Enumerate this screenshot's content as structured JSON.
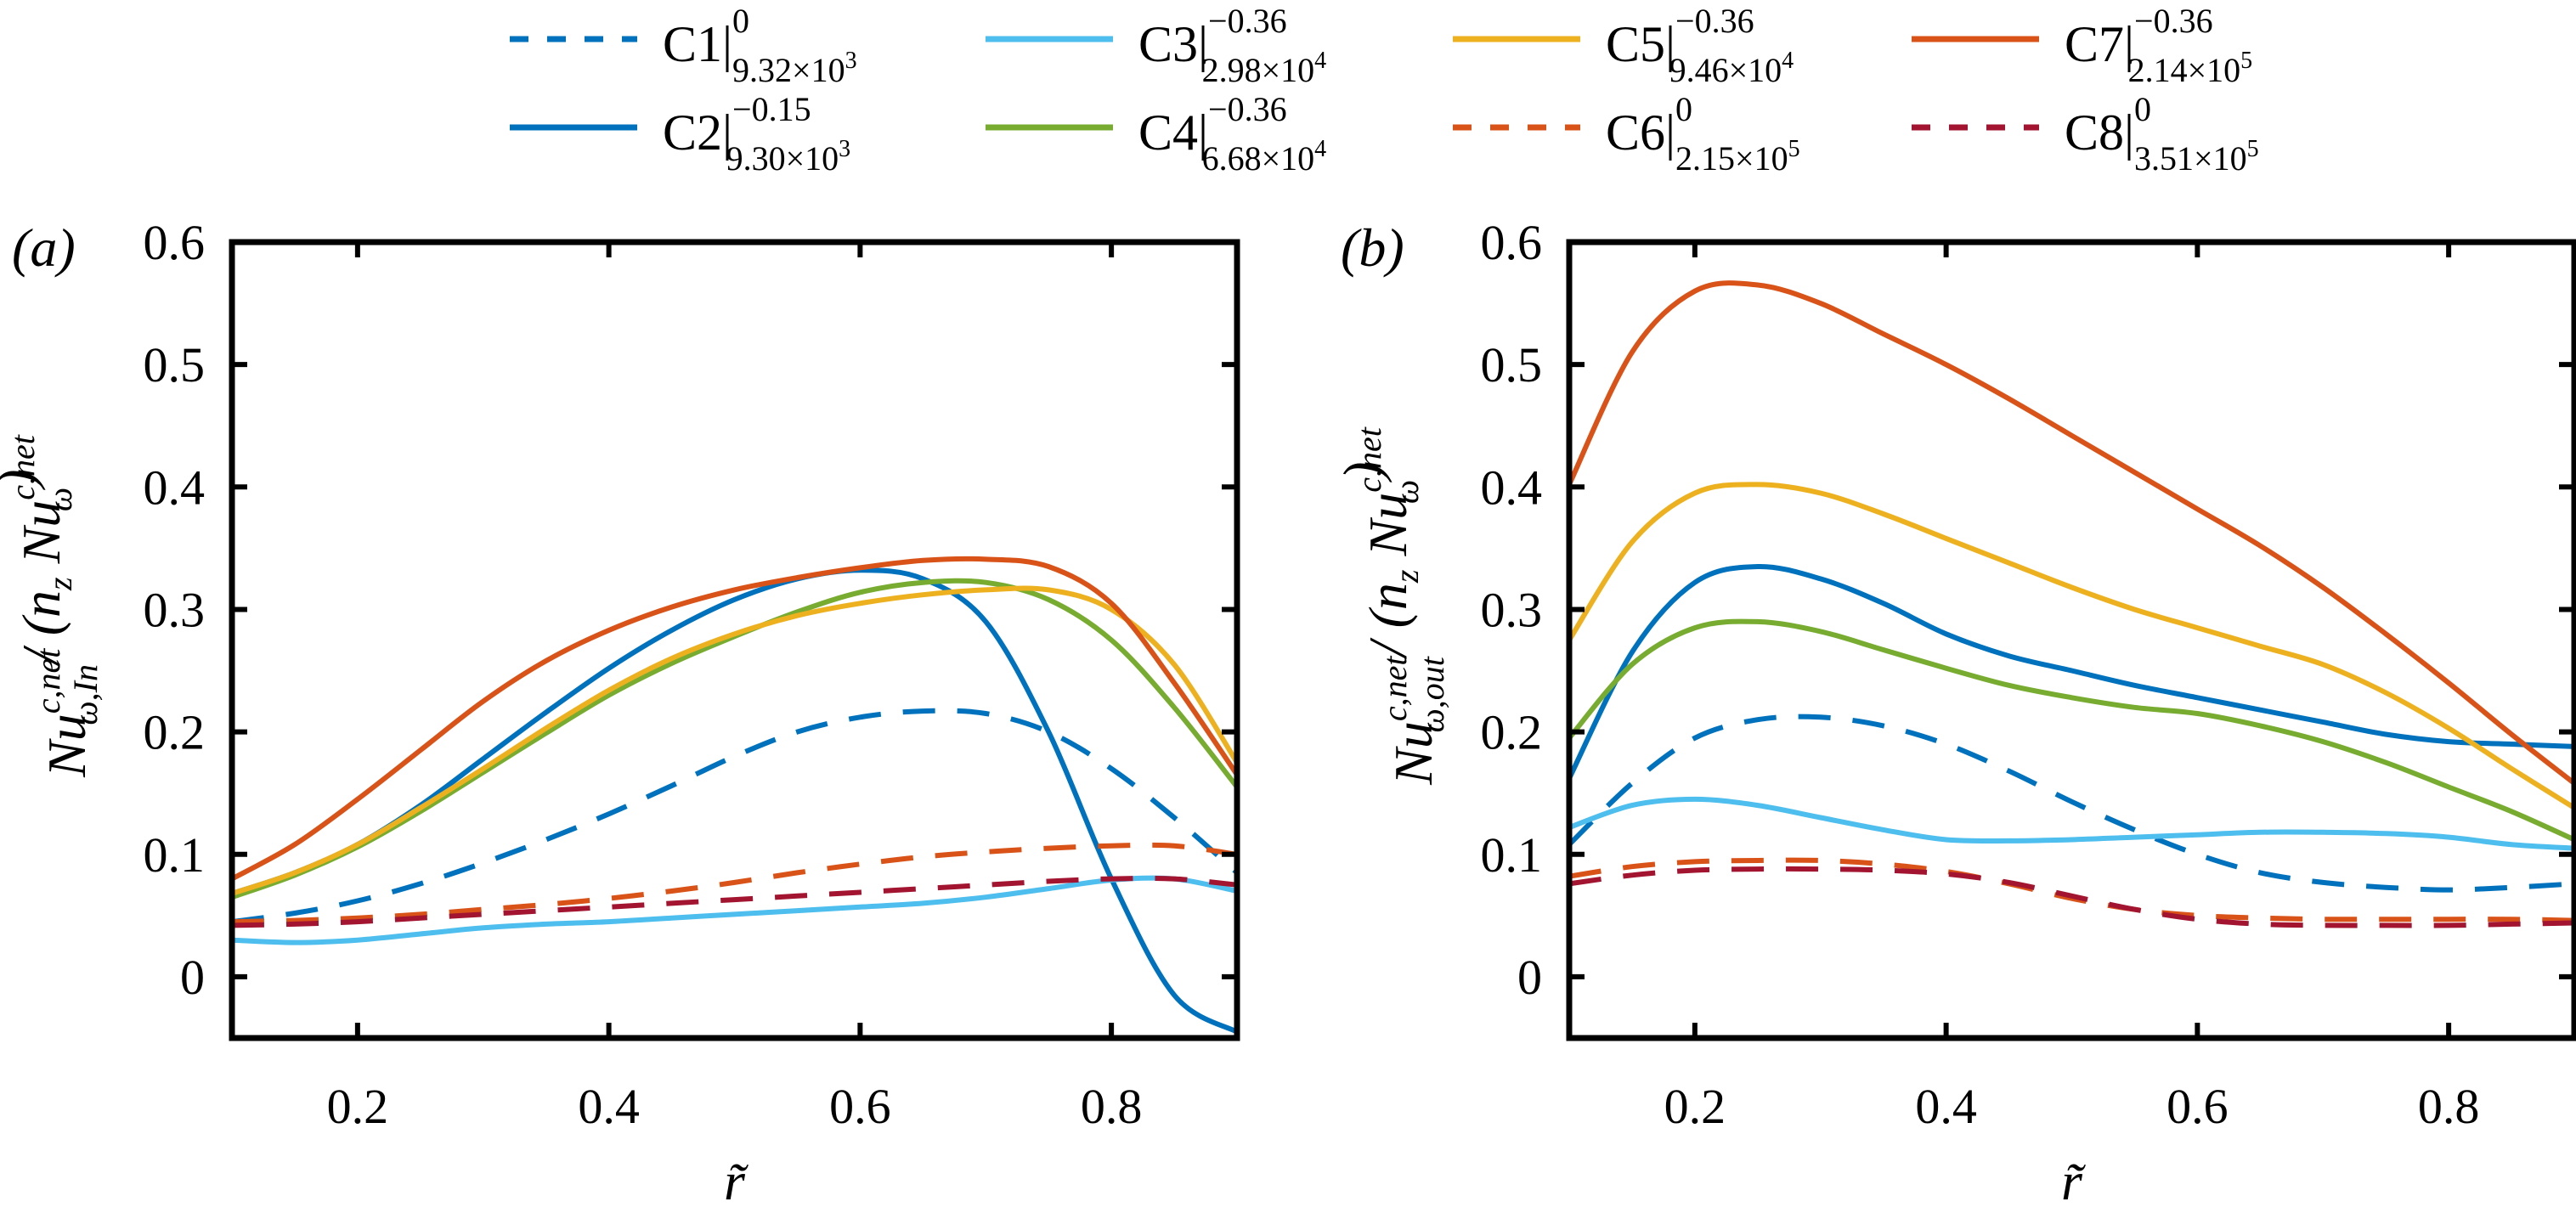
{
  "chart_data": [
    {
      "type": "line",
      "panel_label": "(a)",
      "xlabel": "r̃",
      "ylabel": "Nu^{c,net}_{ω,In} / (n_z Nu^{c,net}_ω)",
      "ylabel_parts": {
        "main": "Nu",
        "sup": "c,net",
        "sub": "ω,In",
        "rest": "/ (n",
        "rest_sub": "z",
        "rest2": " Nu",
        "rest2_sup": "c,net",
        "rest2_sub": "ω",
        "close": ")"
      },
      "xlim": [
        0.1,
        0.9
      ],
      "ylim": [
        -0.05,
        0.6
      ],
      "xticks": [
        0.2,
        0.4,
        0.6,
        0.8
      ],
      "xtick_labels": [
        "0.2",
        "0.4",
        "0.6",
        "0.8"
      ],
      "yticks": [
        0,
        0.1,
        0.2,
        0.3,
        0.4,
        0.5,
        0.6
      ],
      "ytick_labels": [
        "0",
        "0.1",
        "0.2",
        "0.3",
        "0.4",
        "0.5",
        "0.6"
      ],
      "grid": false,
      "x": [
        0.1,
        0.15,
        0.2,
        0.25,
        0.3,
        0.35,
        0.4,
        0.45,
        0.5,
        0.55,
        0.6,
        0.65,
        0.7,
        0.75,
        0.8,
        0.85,
        0.9
      ],
      "series": [
        {
          "name": "C1",
          "values": [
            0.045,
            0.052,
            0.062,
            0.076,
            0.093,
            0.112,
            0.133,
            0.156,
            0.18,
            0.2,
            0.212,
            0.217,
            0.215,
            0.2,
            0.17,
            0.13,
            0.085
          ]
        },
        {
          "name": "C2",
          "values": [
            0.068,
            0.085,
            0.108,
            0.14,
            0.178,
            0.216,
            0.252,
            0.283,
            0.308,
            0.325,
            0.332,
            0.325,
            0.29,
            0.2,
            0.08,
            -0.015,
            -0.045
          ]
        },
        {
          "name": "C3",
          "values": [
            0.03,
            0.028,
            0.03,
            0.035,
            0.04,
            0.043,
            0.045,
            0.048,
            0.051,
            0.054,
            0.057,
            0.06,
            0.065,
            0.072,
            0.079,
            0.08,
            0.07
          ]
        },
        {
          "name": "C4",
          "values": [
            0.065,
            0.083,
            0.106,
            0.135,
            0.167,
            0.199,
            0.23,
            0.256,
            0.278,
            0.298,
            0.314,
            0.322,
            0.322,
            0.308,
            0.275,
            0.22,
            0.155
          ]
        },
        {
          "name": "C5",
          "values": [
            0.068,
            0.085,
            0.108,
            0.138,
            0.17,
            0.203,
            0.234,
            0.26,
            0.28,
            0.295,
            0.305,
            0.312,
            0.316,
            0.316,
            0.3,
            0.255,
            0.175
          ]
        },
        {
          "name": "C6",
          "values": [
            0.045,
            0.046,
            0.048,
            0.051,
            0.055,
            0.059,
            0.064,
            0.07,
            0.077,
            0.085,
            0.092,
            0.098,
            0.102,
            0.105,
            0.107,
            0.107,
            0.1
          ]
        },
        {
          "name": "C7",
          "values": [
            0.08,
            0.108,
            0.145,
            0.185,
            0.225,
            0.258,
            0.283,
            0.302,
            0.316,
            0.326,
            0.334,
            0.34,
            0.341,
            0.335,
            0.305,
            0.24,
            0.165
          ]
        },
        {
          "name": "C8",
          "values": [
            0.042,
            0.043,
            0.045,
            0.048,
            0.051,
            0.054,
            0.057,
            0.06,
            0.063,
            0.066,
            0.069,
            0.072,
            0.075,
            0.078,
            0.08,
            0.08,
            0.075
          ]
        }
      ]
    },
    {
      "type": "line",
      "panel_label": "(b)",
      "xlabel": "r̃",
      "ylabel": "Nu^{c,net}_{ω,out} / (n_z Nu^{c,net}_ω)",
      "ylabel_parts": {
        "main": "Nu",
        "sup": "c,net",
        "sub": "ω,out",
        "rest": "/ (n",
        "rest_sub": "z",
        "rest2": " Nu",
        "rest2_sup": "c,net",
        "rest2_sub": "ω",
        "close": ")"
      },
      "xlim": [
        0.1,
        0.9
      ],
      "ylim": [
        -0.05,
        0.6
      ],
      "xticks": [
        0.2,
        0.4,
        0.6,
        0.8
      ],
      "xtick_labels": [
        "0.2",
        "0.4",
        "0.6",
        "0.8"
      ],
      "yticks": [
        0,
        0.1,
        0.2,
        0.3,
        0.4,
        0.5,
        0.6
      ],
      "ytick_labels": [
        "0",
        "0.1",
        "0.2",
        "0.3",
        "0.4",
        "0.5",
        "0.6"
      ],
      "grid": false,
      "x": [
        0.1,
        0.15,
        0.2,
        0.25,
        0.3,
        0.35,
        0.4,
        0.45,
        0.5,
        0.55,
        0.6,
        0.65,
        0.7,
        0.75,
        0.8,
        0.85,
        0.9
      ],
      "series": [
        {
          "name": "C1",
          "values": [
            0.108,
            0.158,
            0.195,
            0.21,
            0.212,
            0.205,
            0.19,
            0.168,
            0.143,
            0.12,
            0.1,
            0.085,
            0.077,
            0.073,
            0.071,
            0.073,
            0.076
          ]
        },
        {
          "name": "C2",
          "values": [
            0.162,
            0.265,
            0.322,
            0.335,
            0.325,
            0.305,
            0.28,
            0.262,
            0.25,
            0.238,
            0.228,
            0.218,
            0.208,
            0.198,
            0.192,
            0.19,
            0.188
          ]
        },
        {
          "name": "C3",
          "values": [
            0.122,
            0.14,
            0.145,
            0.14,
            0.13,
            0.12,
            0.112,
            0.111,
            0.112,
            0.114,
            0.116,
            0.118,
            0.118,
            0.117,
            0.114,
            0.108,
            0.105
          ]
        },
        {
          "name": "C4",
          "values": [
            0.195,
            0.255,
            0.285,
            0.29,
            0.282,
            0.267,
            0.252,
            0.238,
            0.228,
            0.22,
            0.215,
            0.205,
            0.192,
            0.175,
            0.155,
            0.135,
            0.112
          ]
        },
        {
          "name": "C5",
          "values": [
            0.275,
            0.355,
            0.395,
            0.402,
            0.395,
            0.378,
            0.358,
            0.338,
            0.318,
            0.3,
            0.285,
            0.27,
            0.255,
            0.232,
            0.203,
            0.17,
            0.138
          ]
        },
        {
          "name": "C6",
          "values": [
            0.082,
            0.09,
            0.094,
            0.095,
            0.095,
            0.092,
            0.086,
            0.076,
            0.064,
            0.055,
            0.05,
            0.048,
            0.047,
            0.047,
            0.047,
            0.047,
            0.046
          ]
        },
        {
          "name": "C7",
          "values": [
            0.402,
            0.51,
            0.56,
            0.565,
            0.55,
            0.525,
            0.5,
            0.472,
            0.442,
            0.412,
            0.382,
            0.352,
            0.318,
            0.28,
            0.24,
            0.198,
            0.158
          ]
        },
        {
          "name": "C8",
          "values": [
            0.076,
            0.083,
            0.087,
            0.088,
            0.088,
            0.087,
            0.084,
            0.077,
            0.066,
            0.055,
            0.047,
            0.043,
            0.042,
            0.042,
            0.042,
            0.043,
            0.044
          ]
        }
      ]
    }
  ],
  "legend": {
    "placement": "top",
    "entries": [
      {
        "name": "C1",
        "base": "C",
        "index": "1",
        "sup": "0",
        "sub": "9.32×10",
        "sub_exp": "3",
        "color": "#0072BD",
        "dashed": true
      },
      {
        "name": "C2",
        "base": "C",
        "index": "2",
        "sup": "−0.15",
        "sub": "9.30×10",
        "sub_exp": "3",
        "color": "#0072BD",
        "dashed": false
      },
      {
        "name": "C3",
        "base": "C",
        "index": "3",
        "sup": "−0.36",
        "sub": "2.98×10",
        "sub_exp": "4",
        "color": "#4DBEEE",
        "dashed": false
      },
      {
        "name": "C4",
        "base": "C",
        "index": "4",
        "sup": "−0.36",
        "sub": "6.68×10",
        "sub_exp": "4",
        "color": "#77AC30",
        "dashed": false
      },
      {
        "name": "C5",
        "base": "C",
        "index": "5",
        "sup": "−0.36",
        "sub": "9.46×10",
        "sub_exp": "4",
        "color": "#EDB120",
        "dashed": false
      },
      {
        "name": "C6",
        "base": "C",
        "index": "6",
        "sup": "0",
        "sub": "2.15×10",
        "sub_exp": "5",
        "color": "#D95319",
        "dashed": true
      },
      {
        "name": "C7",
        "base": "C",
        "index": "7",
        "sup": "−0.36",
        "sub": "2.14×10",
        "sub_exp": "5",
        "color": "#D95319",
        "dashed": false
      },
      {
        "name": "C8",
        "base": "C",
        "index": "8",
        "sup": "0",
        "sub": "3.51×10",
        "sub_exp": "5",
        "color": "#A2142F",
        "dashed": true
      }
    ]
  }
}
